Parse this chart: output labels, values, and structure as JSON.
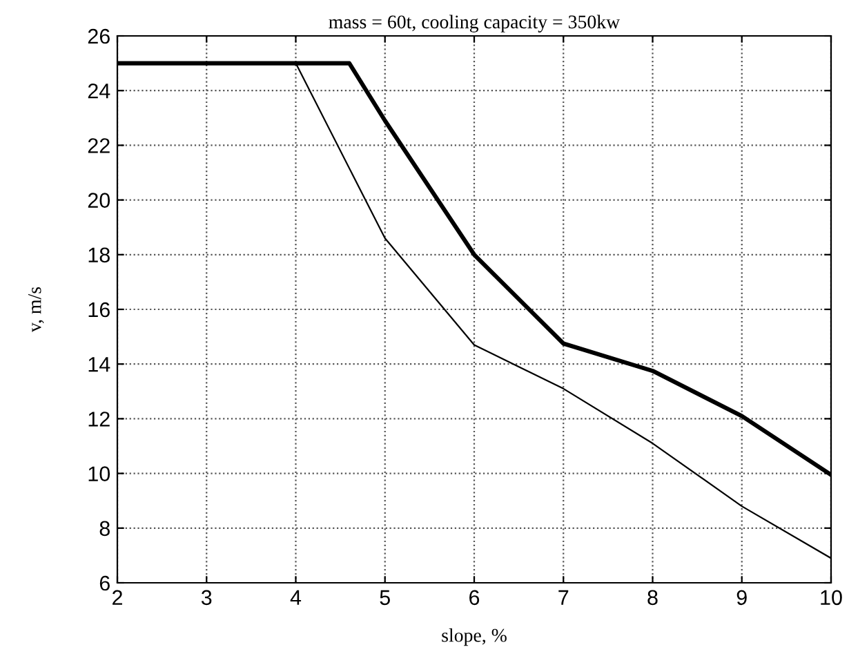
{
  "chart_data": {
    "type": "line",
    "title": "mass = 60t, cooling capacity = 350kw",
    "xlabel": "slope, %",
    "ylabel": "v, m/s",
    "series": [
      {
        "color": "#000000",
        "x": [
          2,
          4.6,
          5,
          6,
          7,
          8,
          9,
          10
        ],
        "values": [
          25,
          25,
          22.9,
          18,
          14.75,
          13.75,
          12.1,
          9.95
        ]
      },
      {
        "color": "#000000",
        "x": [
          2,
          4,
          5,
          6,
          7,
          8,
          9,
          10
        ],
        "values": [
          25,
          25,
          18.6,
          14.7,
          13.1,
          11.1,
          8.8,
          6.9
        ]
      }
    ],
    "xlim": [
      2,
      10
    ],
    "xticks": [
      2,
      3,
      4,
      5,
      6,
      7,
      8,
      9,
      10
    ],
    "ylim": [
      6,
      26
    ],
    "yticks": [
      6,
      8,
      10,
      12,
      14,
      16,
      18,
      20,
      22,
      24,
      26
    ],
    "grid": true,
    "marker": "none",
    "line_style": "solid"
  }
}
